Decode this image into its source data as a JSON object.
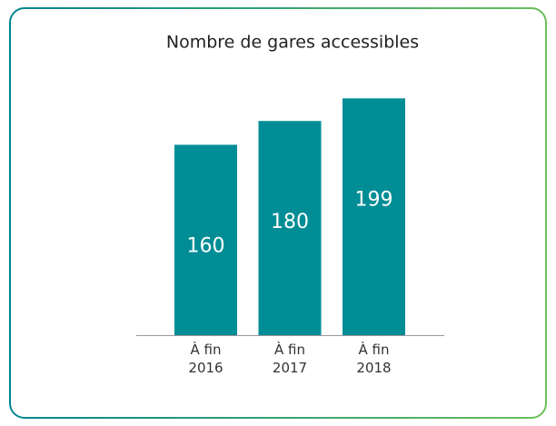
{
  "chart_data": {
    "type": "bar",
    "title": "Nombre de gares accessibles",
    "categories": [
      "À fin\n2016",
      "À fin\n2017",
      "À fin\n2018"
    ],
    "values": [
      160,
      180,
      199
    ],
    "color": "#008d96",
    "ylim": [
      0,
      200
    ]
  }
}
